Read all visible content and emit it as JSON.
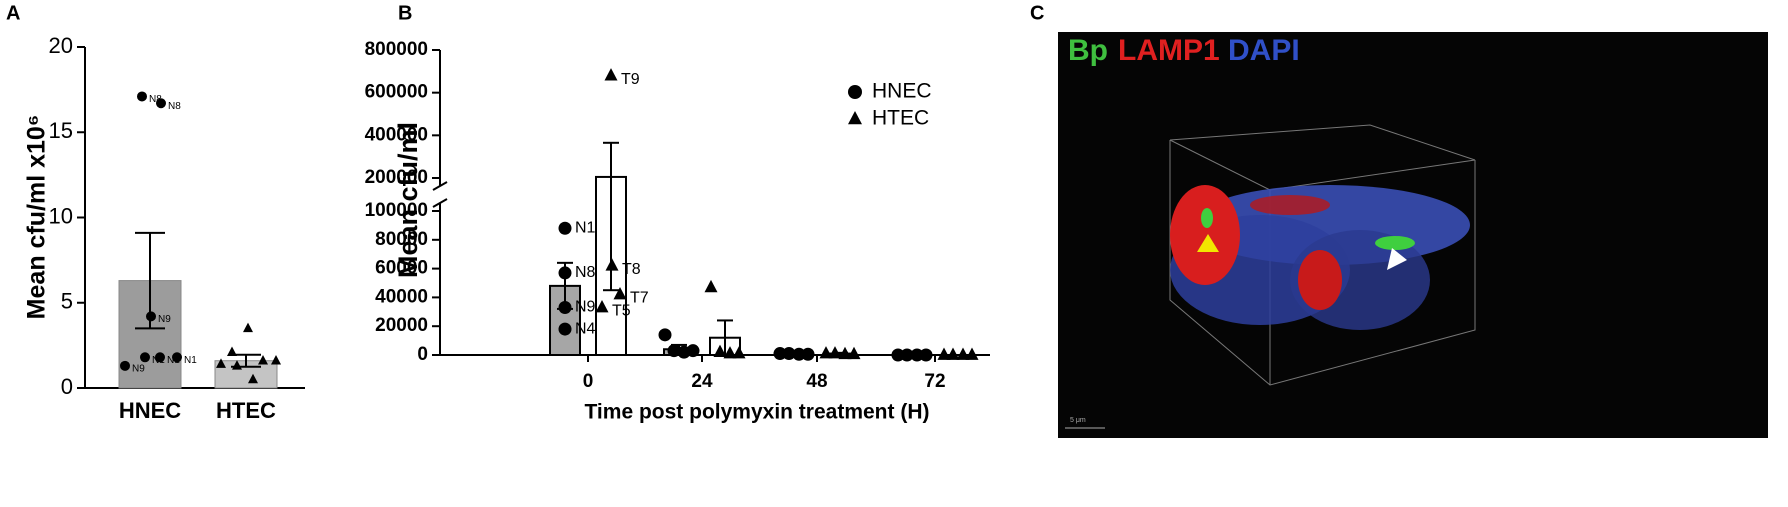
{
  "chart_data": [
    {
      "type": "bar",
      "panel": "A",
      "ylabel": "Mean cfu/ml x10⁶",
      "categories": [
        "HNEC",
        "HTEC"
      ],
      "values": [
        6.3,
        1.6
      ],
      "errors": [
        2.8,
        0.35
      ],
      "colors": [
        "#9c9c9c",
        "#c4c4c4"
      ],
      "markers": [
        "circle",
        "triangle"
      ],
      "points": [
        [
          17.1,
          16.7,
          4.2,
          1.8,
          1.3,
          1.8,
          1.8
        ],
        [
          3.5,
          2.1,
          1.6,
          1.6,
          1.4,
          1.3,
          0.5
        ]
      ],
      "point_labels": [
        [
          "N8",
          "N8",
          "N9",
          "N1",
          "N9",
          "N1",
          "N1"
        ],
        [
          null,
          null,
          null,
          null,
          null,
          null,
          null
        ]
      ],
      "ylim": [
        0,
        20
      ],
      "yticks": [
        0,
        5,
        10,
        15,
        20
      ]
    },
    {
      "type": "bar",
      "panel": "B",
      "ylabel": "Mean cfu/ml",
      "xlabel": "Time post polymyxin treatment  (H)",
      "categories": [
        "0",
        "24",
        "48",
        "72"
      ],
      "ylim": [
        0,
        800000
      ],
      "ybreak": [
        100000,
        200000
      ],
      "yticks": [
        0,
        20000,
        40000,
        60000,
        80000,
        100000,
        200000,
        400000,
        600000,
        800000
      ],
      "legend": "upper right",
      "series": [
        {
          "name": "HNEC",
          "color": "#a6a6a6",
          "marker": "circle",
          "values": [
            48000,
            4000,
            1000,
            0
          ],
          "errors": [
            16000,
            3000,
            500,
            0
          ],
          "points": [
            [
              88000,
              57000,
              33000,
              18000
            ],
            [
              14000,
              3000,
              2000,
              3000
            ],
            [
              1000,
              1000,
              500,
              500
            ],
            [
              0,
              0,
              0,
              0
            ]
          ],
          "point_labels": [
            [
              "N1",
              "N8",
              "N9",
              "N4"
            ],
            [
              null,
              null,
              null,
              null
            ],
            [
              null,
              null,
              null,
              null
            ],
            [
              null,
              null,
              null,
              null
            ]
          ]
        },
        {
          "name": "HTEC",
          "color": "#ffffff",
          "marker": "triangle",
          "values": [
            205000,
            12000,
            1000,
            0
          ],
          "errors": [
            160000,
            12000,
            500,
            0
          ],
          "points": [
            [
              680000,
              62000,
              42000,
              33000
            ],
            [
              47000,
              2000,
              1000,
              1000
            ],
            [
              1000,
              1000,
              500,
              500
            ],
            [
              0,
              0,
              0,
              0
            ]
          ],
          "point_labels": [
            [
              "T9",
              "T8",
              "T7",
              "T5"
            ],
            [
              null,
              null,
              null,
              null
            ],
            [
              null,
              null,
              null,
              null
            ],
            [
              null,
              null,
              null,
              null
            ]
          ]
        }
      ]
    }
  ],
  "image": {
    "panel": "C",
    "channels": [
      {
        "text": "Bp",
        "color": "#3fbf3f"
      },
      {
        "text": "LAMP1",
        "color": "#e02020"
      },
      {
        "text": "DAPI",
        "color": "#3050c8"
      }
    ],
    "scale_bar": "5 μm"
  }
}
